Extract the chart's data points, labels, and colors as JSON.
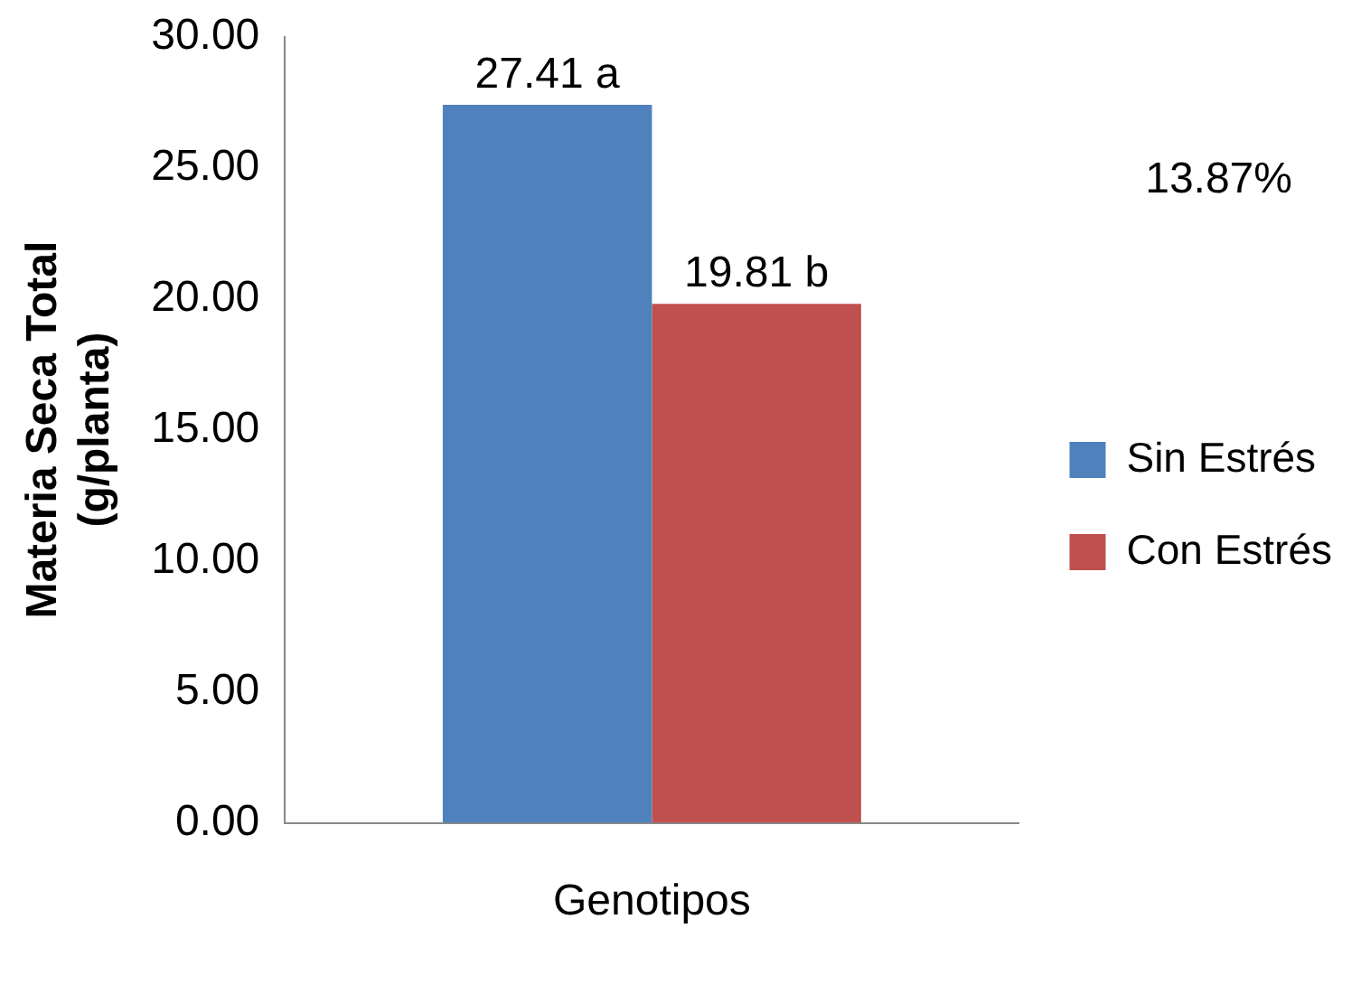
{
  "chart_data": {
    "type": "bar",
    "categories": [
      "Genotipos"
    ],
    "series": [
      {
        "name": "Sin Estrés",
        "color": "#4f81bd",
        "values": [
          27.41
        ],
        "value_labels": [
          "27.41 a"
        ]
      },
      {
        "name": "Con Estrés",
        "color": "#c0504d",
        "values": [
          19.81
        ],
        "value_labels": [
          "19.81 b"
        ]
      }
    ],
    "ylabel": "Materia Seca Total\n(g/planta)",
    "ylim": [
      0,
      30
    ],
    "yticks": [
      {
        "value": 0,
        "label": "0.00"
      },
      {
        "value": 5,
        "label": "5.00"
      },
      {
        "value": 10,
        "label": "10.00"
      },
      {
        "value": 15,
        "label": "15.00"
      },
      {
        "value": 20,
        "label": "20.00"
      },
      {
        "value": 25,
        "label": "25.00"
      },
      {
        "value": 30,
        "label": "30.00"
      }
    ],
    "annotations": [
      "13.87%"
    ],
    "legend": "right",
    "grid": false
  }
}
